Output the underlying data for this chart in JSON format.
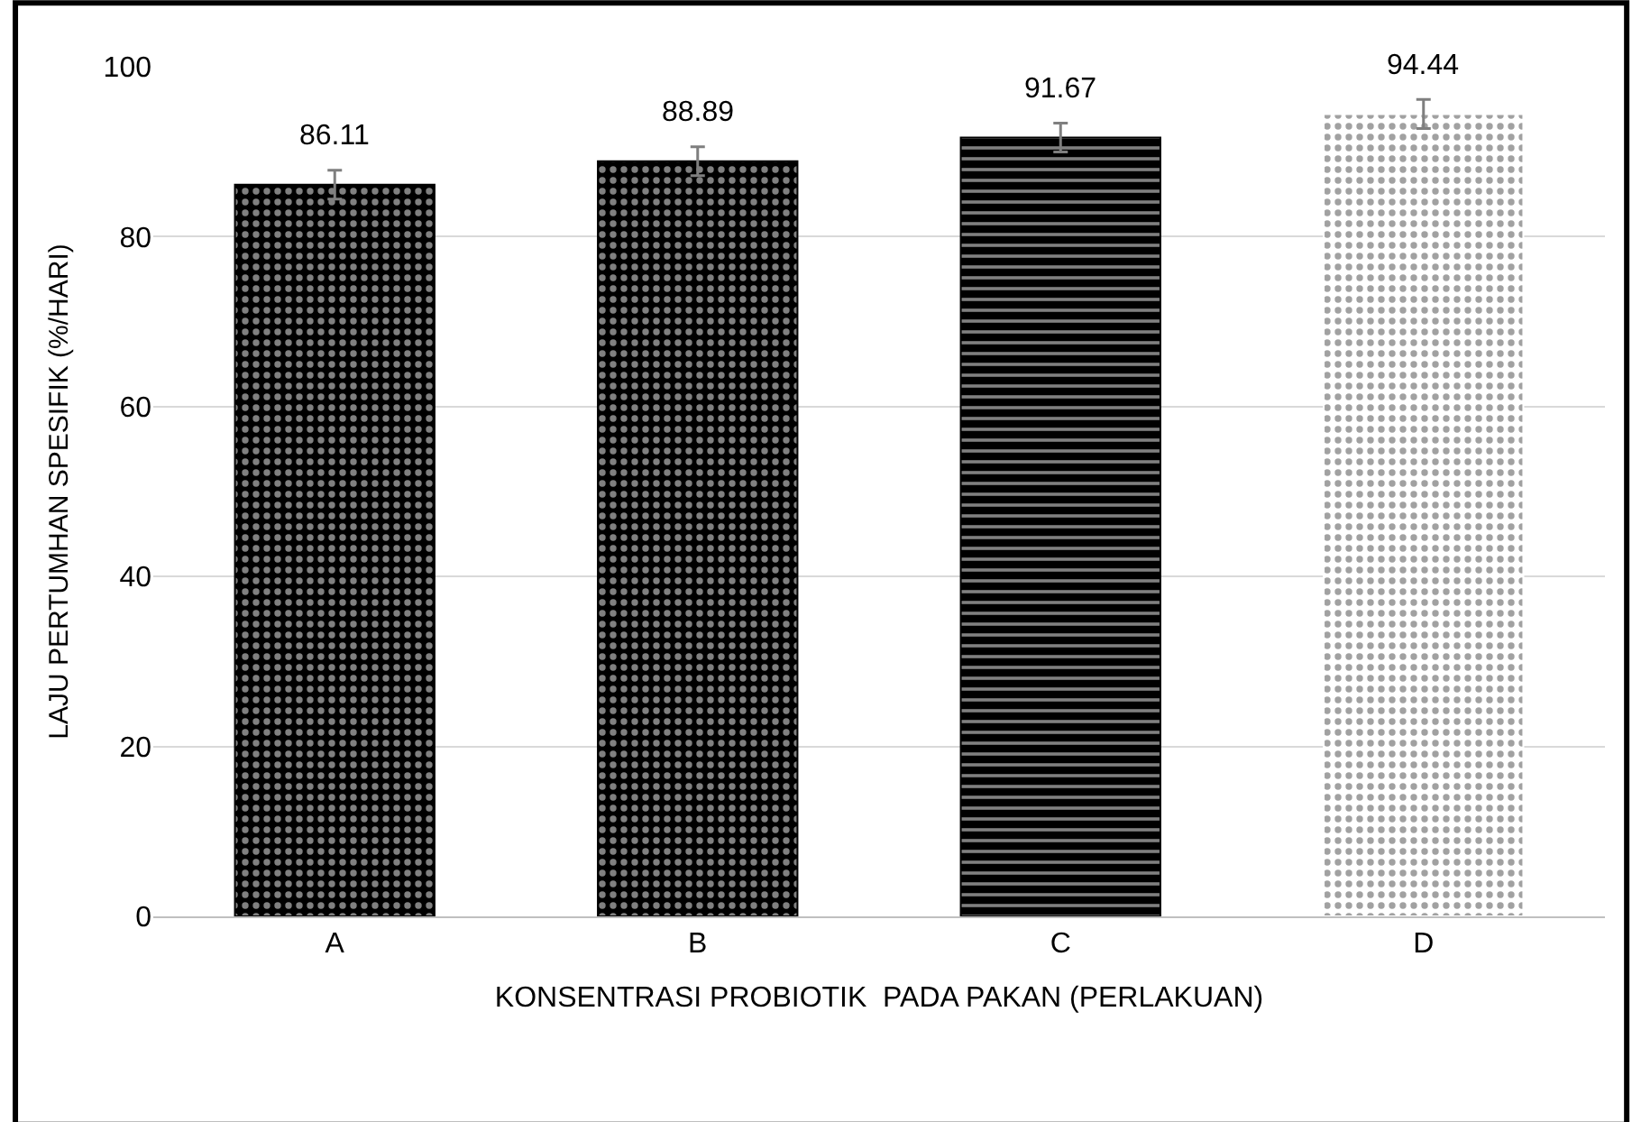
{
  "chart_data": {
    "type": "bar",
    "xlabel": "KONSENTRASI PROBIOTIK  PADA PAKAN (PERLAKUAN)",
    "ylabel": "LAJU PERTUMHAN SPESIFIK (%/HARI)",
    "categories": [
      "A",
      "B",
      "C",
      "D"
    ],
    "values": [
      86.11,
      88.89,
      91.67,
      94.44
    ],
    "errors": [
      1.7,
      1.7,
      1.7,
      1.7
    ],
    "colors": [
      "#000000",
      "#000000",
      "#000000",
      "#ffffff"
    ],
    "data_labels": true,
    "ylim": [
      0,
      100
    ],
    "yticks": [
      0,
      20,
      40,
      60,
      80,
      100
    ],
    "grid": "y"
  }
}
